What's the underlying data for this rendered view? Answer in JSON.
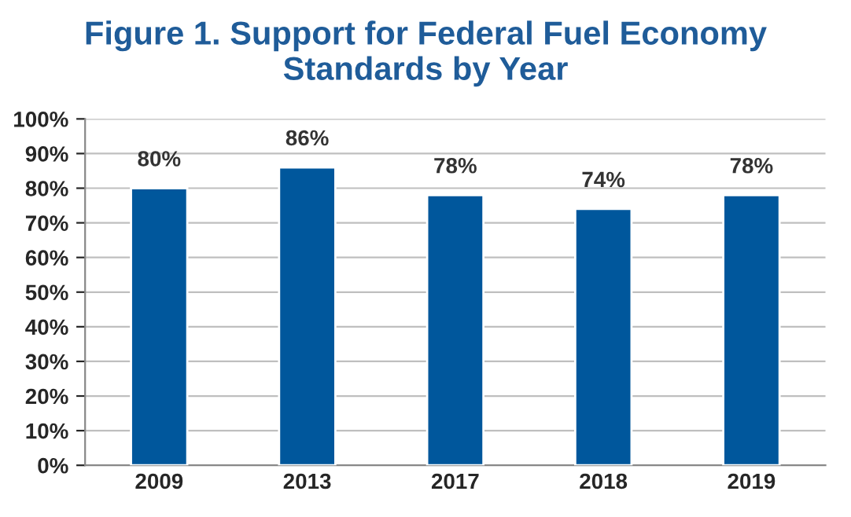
{
  "chart_data": {
    "type": "bar",
    "title": "Figure 1. Support for Federal Fuel Economy\nStandards by Year",
    "categories": [
      "2009",
      "2013",
      "2017",
      "2018",
      "2019"
    ],
    "values": [
      80,
      86,
      78,
      74,
      78
    ],
    "value_labels": [
      "80%",
      "86%",
      "78%",
      "74%",
      "78%"
    ],
    "color": "#00579c",
    "ylim": [
      0,
      100
    ],
    "yticks": [
      {
        "value": 0,
        "label": "0%"
      },
      {
        "value": 10,
        "label": "10%"
      },
      {
        "value": 20,
        "label": "20%"
      },
      {
        "value": 30,
        "label": "30%"
      },
      {
        "value": 40,
        "label": "40%"
      },
      {
        "value": 50,
        "label": "50%"
      },
      {
        "value": 60,
        "label": "60%"
      },
      {
        "value": 70,
        "label": "70%"
      },
      {
        "value": 80,
        "label": "80%"
      },
      {
        "value": 90,
        "label": "90%"
      },
      {
        "value": 100,
        "label": "100%"
      }
    ],
    "grid": "y"
  }
}
